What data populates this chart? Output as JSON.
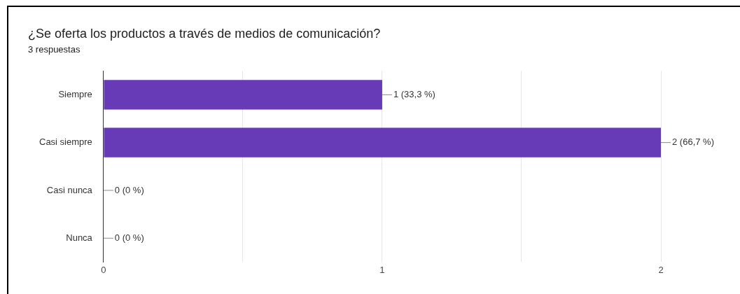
{
  "chart_data": {
    "type": "bar",
    "orientation": "horizontal",
    "title": "¿Se oferta los productos a través de medios de comunicación?",
    "subtitle": "3 respuestas",
    "categories": [
      "Siempre",
      "Casi siempre",
      "Casi nunca",
      "Nunca"
    ],
    "values": [
      1,
      2,
      0,
      0
    ],
    "color": "#673ab7",
    "value_labels": [
      "1 (33,3 %)",
      "2 (66,7 %)",
      "0 (0 %)",
      "0 (0 %)"
    ],
    "xlim": [
      0,
      2
    ],
    "xticks": [
      0,
      {
        "value": 0.5,
        "label": null
      },
      1,
      {
        "value": 1.5,
        "label": null
      },
      2
    ],
    "grid": "x"
  }
}
